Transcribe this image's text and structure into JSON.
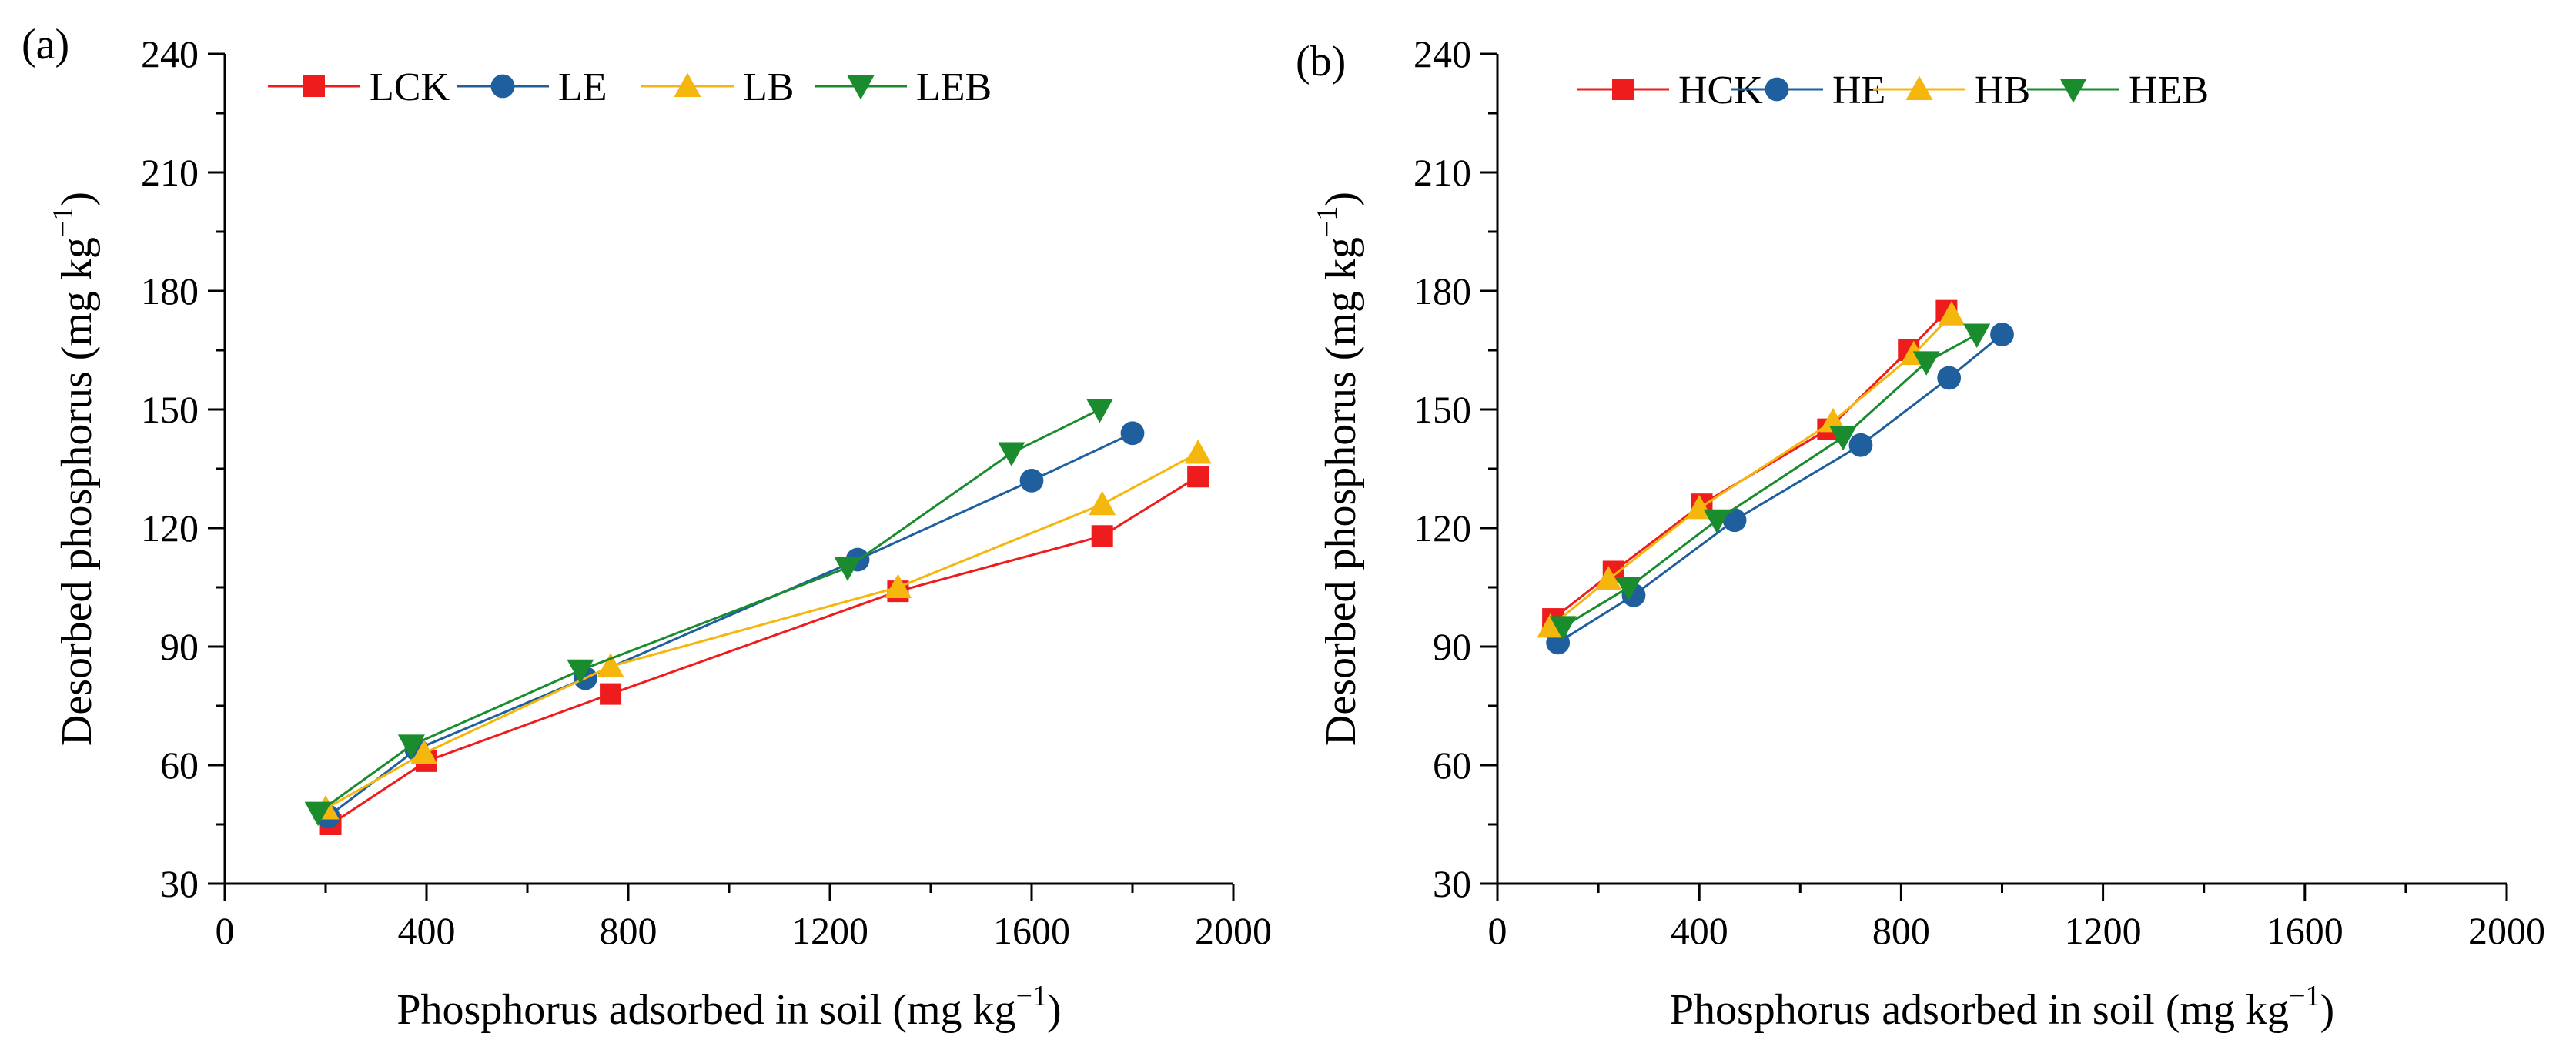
{
  "chart_data": [
    {
      "panel_label": "(a)",
      "type": "line",
      "xlabel": "Phosphorus adsorbed in soil (mg kg",
      "xlabel_sup": "−1",
      "xlabel_close": ")",
      "ylabel": "Desorbed phosphorus (mg kg",
      "ylabel_sup": "−1",
      "ylabel_close": ")",
      "xlim": [
        0,
        2000
      ],
      "ylim": [
        30,
        240
      ],
      "xticks": [
        0,
        400,
        800,
        1200,
        1600,
        2000
      ],
      "yticks": [
        30,
        60,
        90,
        120,
        150,
        180,
        210,
        240
      ],
      "legend_position": "top-left",
      "series": [
        {
          "name": "LCK",
          "color": "#ee1c1c",
          "marker": "square",
          "points": [
            [
              210,
              45
            ],
            [
              400,
              61
            ],
            [
              765,
              78
            ],
            [
              1335,
              104
            ],
            [
              1740,
              118
            ],
            [
              1930,
              133
            ]
          ]
        },
        {
          "name": "LE",
          "color": "#1f5f9e",
          "marker": "circle",
          "points": [
            [
              205,
              47
            ],
            [
              380,
              64
            ],
            [
              715,
              82
            ],
            [
              1255,
              112
            ],
            [
              1600,
              132
            ],
            [
              1800,
              144
            ]
          ]
        },
        {
          "name": "LB",
          "color": "#f5b70e",
          "marker": "triangle-up",
          "points": [
            [
              200,
              49
            ],
            [
              395,
              63
            ],
            [
              765,
              85
            ],
            [
              1335,
              105
            ],
            [
              1740,
              126
            ],
            [
              1930,
              139
            ]
          ]
        },
        {
          "name": "LEB",
          "color": "#1a8c2e",
          "marker": "triangle-down",
          "points": [
            [
              185,
              48
            ],
            [
              370,
              65
            ],
            [
              705,
              84
            ],
            [
              1235,
              110
            ],
            [
              1560,
              139
            ],
            [
              1735,
              150
            ]
          ]
        }
      ]
    },
    {
      "panel_label": "(b)",
      "type": "line",
      "xlabel": "Phosphorus adsorbed in soil (mg kg",
      "xlabel_sup": "−1",
      "xlabel_close": ")",
      "ylabel": "Desorbed phosphorus  (mg kg",
      "ylabel_sup": "−1",
      "ylabel_close": ")",
      "xlim": [
        0,
        2000
      ],
      "ylim": [
        30,
        240
      ],
      "xticks": [
        0,
        400,
        800,
        1200,
        1600,
        2000
      ],
      "yticks": [
        30,
        60,
        90,
        120,
        150,
        180,
        210,
        240
      ],
      "legend_position": "top-left",
      "series": [
        {
          "name": "HCK",
          "color": "#ee1c1c",
          "marker": "square",
          "points": [
            [
              110,
              97
            ],
            [
              230,
              109
            ],
            [
              405,
              126
            ],
            [
              655,
              145
            ],
            [
              815,
              165
            ],
            [
              890,
              175
            ]
          ]
        },
        {
          "name": "HE",
          "color": "#1f5f9e",
          "marker": "circle",
          "points": [
            [
              120,
              91
            ],
            [
              270,
              103
            ],
            [
              470,
              122
            ],
            [
              720,
              141
            ],
            [
              895,
              158
            ],
            [
              1000,
              169
            ]
          ]
        },
        {
          "name": "HB",
          "color": "#f5b70e",
          "marker": "triangle-up",
          "points": [
            [
              105,
              95
            ],
            [
              220,
              107
            ],
            [
              400,
              125
            ],
            [
              665,
              147
            ],
            [
              825,
              164
            ],
            [
              900,
              174
            ]
          ]
        },
        {
          "name": "HEB",
          "color": "#1a8c2e",
          "marker": "triangle-down",
          "points": [
            [
              130,
              95
            ],
            [
              260,
              105
            ],
            [
              435,
              122
            ],
            [
              685,
              143
            ],
            [
              850,
              162
            ],
            [
              950,
              169
            ]
          ]
        }
      ]
    }
  ]
}
